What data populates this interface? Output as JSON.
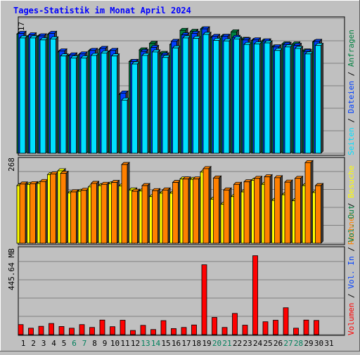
{
  "title": "Tages-Statistik im Monat April 2024",
  "colors": {
    "background": "#c0c0c0",
    "title": "#0000ff",
    "hits": "#008040",
    "files": "#0040ff",
    "pages": "#00e0ff",
    "visits": "#ffff00",
    "sites": "#ff8000",
    "kbytes": "#ff0000",
    "weekend_day": "#00805c",
    "weekday": "#000000"
  },
  "chart_data": [
    {
      "type": "bar",
      "title": "Tages-Statistik im Monat April 2024",
      "panel": "top",
      "categories": [
        "1",
        "2",
        "3",
        "4",
        "5",
        "6",
        "7",
        "8",
        "9",
        "10",
        "11",
        "12",
        "13",
        "14",
        "15",
        "16",
        "17",
        "18",
        "19",
        "20",
        "21",
        "22",
        "23",
        "24",
        "25",
        "26",
        "27",
        "28",
        "29",
        "30",
        "31"
      ],
      "weekend_days": [
        "6",
        "7",
        "13",
        "14",
        "20",
        "21",
        "27",
        "28"
      ],
      "ylim": [
        0,
        26917
      ],
      "ytick_label": "26917",
      "legend": [
        "Anfragen",
        "Dateien",
        "Seiten"
      ],
      "series": [
        {
          "name": "Anfragen",
          "color": "#008040",
          "values": [
            23800,
            23300,
            23300,
            23700,
            20200,
            19400,
            19600,
            20400,
            20700,
            20300,
            11700,
            18300,
            20600,
            21900,
            19900,
            21700,
            24500,
            24300,
            24800,
            23100,
            23300,
            24200,
            22700,
            22500,
            22400,
            21200,
            21800,
            21800,
            20400,
            22200,
            null
          ]
        },
        {
          "name": "Dateien",
          "color": "#0040ff",
          "values": [
            23900,
            23600,
            23400,
            23900,
            20400,
            19600,
            19800,
            20500,
            20900,
            20500,
            12000,
            18300,
            20300,
            21100,
            19600,
            22300,
            23600,
            23900,
            24800,
            23300,
            23300,
            23100,
            22600,
            22600,
            22400,
            21200,
            21700,
            21500,
            20300,
            22300,
            null
          ]
        },
        {
          "name": "Seiten",
          "color": "#00e0ff",
          "values": [
            23000,
            23000,
            22600,
            22800,
            19400,
            19000,
            19000,
            19500,
            20000,
            19400,
            10600,
            17800,
            19500,
            20200,
            19100,
            21000,
            23000,
            22900,
            23700,
            22500,
            22400,
            22800,
            21700,
            21800,
            22000,
            20500,
            21200,
            20900,
            19800,
            21500,
            null
          ]
        }
      ]
    },
    {
      "type": "bar",
      "panel": "middle",
      "categories": [
        "1",
        "2",
        "3",
        "4",
        "5",
        "6",
        "7",
        "8",
        "9",
        "10",
        "11",
        "12",
        "13",
        "14",
        "15",
        "16",
        "17",
        "18",
        "19",
        "20",
        "21",
        "22",
        "23",
        "24",
        "25",
        "26",
        "27",
        "28",
        "29",
        "30",
        "31"
      ],
      "ylim": [
        0,
        268
      ],
      "ytick_label": "268",
      "legend": [
        "Besuche",
        "Rechner"
      ],
      "series": [
        {
          "name": "Besuche",
          "color": "#ffff00",
          "values": [
            183,
            187,
            190,
            218,
            230,
            160,
            165,
            179,
            183,
            189,
            182,
            169,
            166,
            148,
            159,
            159,
            204,
            203,
            226,
            140,
            124,
            148,
            163,
            200,
            187,
            136,
            154,
            135,
            183,
            161,
            null
          ]
        },
        {
          "name": "Rechner",
          "color": "#ff8000",
          "values": [
            188,
            189,
            196,
            220,
            222,
            163,
            168,
            190,
            187,
            193,
            250,
            165,
            183,
            167,
            169,
            193,
            204,
            204,
            237,
            207,
            169,
            187,
            195,
            206,
            211,
            208,
            194,
            206,
            256,
            183,
            null
          ]
        }
      ]
    },
    {
      "type": "bar",
      "panel": "bottom",
      "categories": [
        "1",
        "2",
        "3",
        "4",
        "5",
        "6",
        "7",
        "8",
        "9",
        "10",
        "11",
        "12",
        "13",
        "14",
        "15",
        "16",
        "17",
        "18",
        "19",
        "20",
        "21",
        "22",
        "23",
        "24",
        "25",
        "26",
        "27",
        "28",
        "29",
        "30",
        "31"
      ],
      "ylim": [
        0,
        445.64
      ],
      "ytick_label": "445.64 MB",
      "legend": [
        "Volumen",
        "Vol. In",
        "Vol. Out"
      ],
      "series": [
        {
          "name": "Volumen",
          "color": "#ff0000",
          "values": [
            53,
            34,
            44,
            59,
            43,
            34,
            53,
            38,
            77,
            42,
            76,
            22,
            49,
            27,
            74,
            32,
            38,
            51,
            369,
            91,
            38,
            112,
            50,
            417,
            68,
            76,
            142,
            34,
            77,
            75,
            null
          ]
        }
      ]
    }
  ]
}
